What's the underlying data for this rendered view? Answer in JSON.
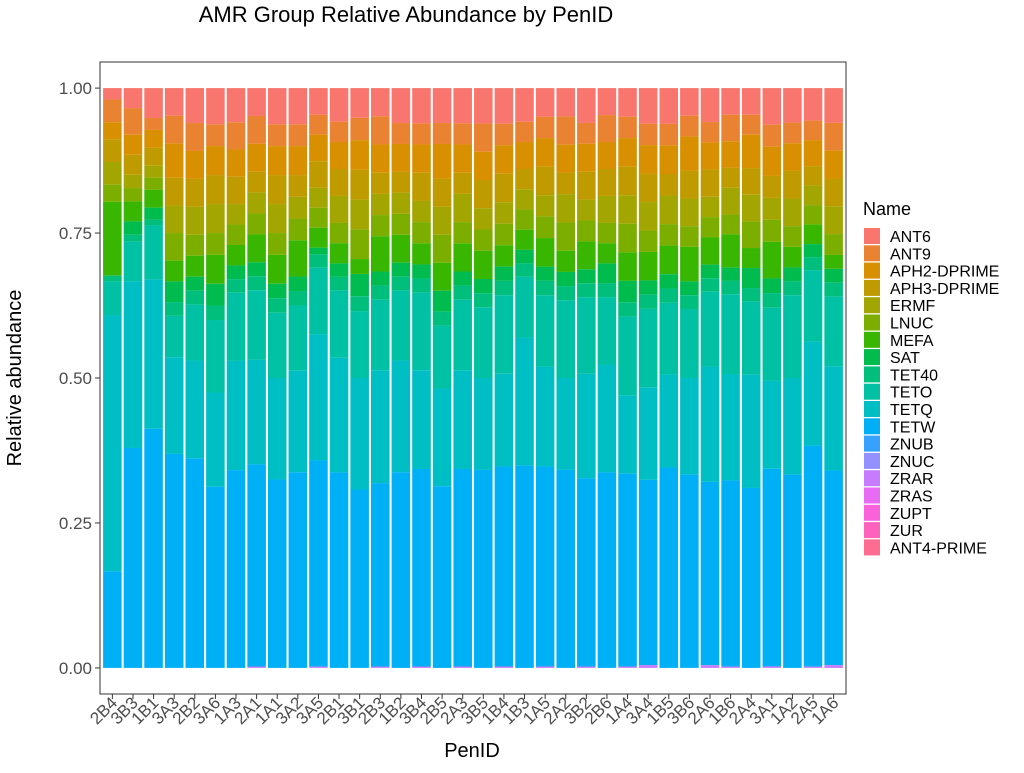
{
  "chart_data": {
    "type": "bar",
    "stacked": true,
    "title": "AMR Group Relative Abundance by PenID",
    "xlabel": "PenID",
    "ylabel": "Relative abundance",
    "ylim": [
      0,
      1
    ],
    "yticks": [
      0,
      0.25,
      0.5,
      0.75,
      1.0
    ],
    "ytick_labels": [
      "0.00",
      "0.25",
      "0.50",
      "0.75",
      "1.00"
    ],
    "legend_title": "Name",
    "legend_position": "right",
    "categories": [
      "2B4",
      "3B3",
      "1B1",
      "3A3",
      "2B2",
      "3A6",
      "1A3",
      "2A1",
      "1A1",
      "3A2",
      "3A5",
      "2B1",
      "3B1",
      "2B3",
      "1B2",
      "3B4",
      "2B5",
      "2A3",
      "3B5",
      "1B4",
      "1B3",
      "1A5",
      "2A2",
      "3B2",
      "2B6",
      "1A4",
      "3A4",
      "1B5",
      "3B6",
      "2A6",
      "1B6",
      "2A4",
      "3A1",
      "1A2",
      "2A5",
      "1A6"
    ],
    "series": [
      {
        "name": "ANT6",
        "color": "#F8766D",
        "values": [
          0.02,
          0.03,
          0.05,
          0.04,
          0.05,
          0.05,
          0.05,
          0.04,
          0.05,
          0.05,
          0.04,
          0.05,
          0.04,
          0.04,
          0.05,
          0.05,
          0.05,
          0.05,
          0.05,
          0.05,
          0.05,
          0.04,
          0.04,
          0.05,
          0.04,
          0.04,
          0.05,
          0.05,
          0.04,
          0.05,
          0.04,
          0.04,
          0.05,
          0.05,
          0.05,
          0.05
        ]
      },
      {
        "name": "ANT9",
        "color": "#EA8331",
        "values": [
          0.04,
          0.04,
          0.02,
          0.04,
          0.04,
          0.03,
          0.04,
          0.04,
          0.03,
          0.03,
          0.03,
          0.03,
          0.03,
          0.04,
          0.03,
          0.03,
          0.03,
          0.03,
          0.04,
          0.03,
          0.03,
          0.03,
          0.04,
          0.03,
          0.04,
          0.03,
          0.03,
          0.03,
          0.03,
          0.03,
          0.04,
          0.03,
          0.03,
          0.03,
          0.03,
          0.04
        ]
      },
      {
        "name": "APH2-DPRIME",
        "color": "#D89000",
        "values": [
          0.03,
          0.03,
          0.03,
          0.05,
          0.04,
          0.04,
          0.04,
          0.04,
          0.04,
          0.04,
          0.04,
          0.04,
          0.04,
          0.04,
          0.04,
          0.04,
          0.05,
          0.04,
          0.04,
          0.04,
          0.04,
          0.04,
          0.04,
          0.04,
          0.04,
          0.04,
          0.04,
          0.04,
          0.05,
          0.04,
          0.04,
          0.05,
          0.04,
          0.04,
          0.04,
          0.04
        ]
      },
      {
        "name": "APH3-DPRIME",
        "color": "#C09B00",
        "values": [
          0.04,
          0.03,
          0.03,
          0.04,
          0.04,
          0.04,
          0.04,
          0.03,
          0.04,
          0.03,
          0.04,
          0.04,
          0.04,
          0.03,
          0.03,
          0.04,
          0.04,
          0.03,
          0.04,
          0.04,
          0.03,
          0.04,
          0.03,
          0.04,
          0.04,
          0.04,
          0.04,
          0.03,
          0.04,
          0.04,
          0.03,
          0.04,
          0.03,
          0.04,
          0.03,
          0.04
        ]
      },
      {
        "name": "ERMF",
        "color": "#A3A500",
        "values": [
          0.04,
          0.02,
          0.02,
          0.04,
          0.04,
          0.04,
          0.03,
          0.03,
          0.04,
          0.03,
          0.03,
          0.04,
          0.04,
          0.03,
          0.03,
          0.03,
          0.04,
          0.04,
          0.03,
          0.03,
          0.03,
          0.03,
          0.04,
          0.03,
          0.04,
          0.04,
          0.04,
          0.04,
          0.04,
          0.03,
          0.04,
          0.04,
          0.03,
          0.04,
          0.03,
          0.04
        ]
      },
      {
        "name": "LNUC",
        "color": "#7CAE00",
        "values": [
          0.03,
          0.02,
          0.02,
          0.04,
          0.03,
          0.03,
          0.03,
          0.03,
          0.03,
          0.03,
          0.03,
          0.03,
          0.04,
          0.03,
          0.03,
          0.03,
          0.04,
          0.03,
          0.03,
          0.03,
          0.03,
          0.03,
          0.04,
          0.03,
          0.03,
          0.04,
          0.03,
          0.03,
          0.03,
          0.03,
          0.03,
          0.04,
          0.03,
          0.03,
          0.03,
          0.03
        ]
      },
      {
        "name": "MEFA",
        "color": "#39B600",
        "values": [
          0.13,
          0.03,
          0.03,
          0.03,
          0.03,
          0.04,
          0.03,
          0.04,
          0.04,
          0.05,
          0.03,
          0.03,
          0.02,
          0.05,
          0.04,
          0.03,
          0.04,
          0.04,
          0.04,
          0.03,
          0.03,
          0.04,
          0.03,
          0.04,
          0.03,
          0.04,
          0.04,
          0.04,
          0.05,
          0.04,
          0.05,
          0.03,
          0.05,
          0.03,
          0.03,
          0.02
        ]
      },
      {
        "name": "SAT",
        "color": "#00BB4E",
        "values": [
          0.0,
          0.02,
          0.02,
          0.03,
          0.02,
          0.03,
          0.02,
          0.02,
          0.02,
          0.02,
          0.01,
          0.02,
          0.03,
          0.02,
          0.02,
          0.02,
          0.03,
          0.02,
          0.02,
          0.02,
          0.02,
          0.02,
          0.02,
          0.02,
          0.03,
          0.03,
          0.02,
          0.02,
          0.02,
          0.02,
          0.02,
          0.03,
          0.02,
          0.02,
          0.02,
          0.02
        ]
      },
      {
        "name": "TET40",
        "color": "#00BF7D",
        "values": [
          0.01,
          0.01,
          0.01,
          0.02,
          0.02,
          0.02,
          0.02,
          0.02,
          0.02,
          0.02,
          0.02,
          0.02,
          0.02,
          0.02,
          0.02,
          0.02,
          0.02,
          0.02,
          0.02,
          0.02,
          0.02,
          0.02,
          0.02,
          0.02,
          0.02,
          0.02,
          0.02,
          0.02,
          0.02,
          0.02,
          0.02,
          0.02,
          0.02,
          0.02,
          0.02,
          0.02
        ]
      },
      {
        "name": "TETO",
        "color": "#00C1A3",
        "values": [
          0.06,
          0.06,
          0.09,
          0.06,
          0.08,
          0.1,
          0.1,
          0.1,
          0.09,
          0.09,
          0.1,
          0.1,
          0.09,
          0.1,
          0.1,
          0.11,
          0.09,
          0.1,
          0.1,
          0.11,
          0.09,
          0.1,
          0.11,
          0.11,
          0.1,
          0.11,
          0.11,
          0.1,
          0.1,
          0.11,
          0.12,
          0.11,
          0.1,
          0.12,
          0.11,
          0.1
        ]
      },
      {
        "name": "TETQ",
        "color": "#00BFC4",
        "values": [
          0.45,
          0.25,
          0.25,
          0.14,
          0.14,
          0.13,
          0.16,
          0.15,
          0.14,
          0.14,
          0.19,
          0.17,
          0.15,
          0.16,
          0.16,
          0.14,
          0.14,
          0.14,
          0.13,
          0.13,
          0.19,
          0.14,
          0.13,
          0.15,
          0.16,
          0.11,
          0.13,
          0.13,
          0.14,
          0.17,
          0.16,
          0.17,
          0.12,
          0.14,
          0.16,
          0.15
        ]
      },
      {
        "name": "TETW",
        "color": "#00B0F6",
        "values": [
          0.17,
          0.33,
          0.4,
          0.31,
          0.3,
          0.25,
          0.29,
          0.29,
          0.26,
          0.27,
          0.31,
          0.29,
          0.24,
          0.26,
          0.28,
          0.28,
          0.26,
          0.28,
          0.28,
          0.28,
          0.3,
          0.28,
          0.28,
          0.27,
          0.29,
          0.27,
          0.26,
          0.28,
          0.28,
          0.27,
          0.28,
          0.27,
          0.27,
          0.28,
          0.34,
          0.28
        ]
      },
      {
        "name": "ZNUB",
        "color": "#35A2FF",
        "values": [
          0.0,
          0.0,
          0.0,
          0.0,
          0.0,
          0.0,
          0.0,
          0.0,
          0.0,
          0.0,
          0.0,
          0.0,
          0.0,
          0.0,
          0.0,
          0.0,
          0.0,
          0.0,
          0.0,
          0.0,
          0.0,
          0.0,
          0.0,
          0.0,
          0.0,
          0.0,
          0.0,
          0.0,
          0.0,
          0.0,
          0.0,
          0.0,
          0.0,
          0.0,
          0.0,
          0.0
        ]
      },
      {
        "name": "ZNUC",
        "color": "#9590FF",
        "values": [
          0.0,
          0.0,
          0.0,
          0.0,
          0.0,
          0.0,
          0.0,
          0.0,
          0.0,
          0.0,
          0.0,
          0.0,
          0.0,
          0.0,
          0.0,
          0.0,
          0.0,
          0.0,
          0.0,
          0.0,
          0.0,
          0.0,
          0.0,
          0.0,
          0.0,
          0.0,
          0.0,
          0.0,
          0.0,
          0.0,
          0.0,
          0.0,
          0.0,
          0.0,
          0.0,
          0.0
        ]
      },
      {
        "name": "ZRAR",
        "color": "#C77CFF",
        "values": [
          0.0,
          0.0,
          0.0,
          0.0,
          0.0,
          0.0,
          0.0,
          0.002,
          0.0,
          0.0,
          0.002,
          0.0,
          0.0,
          0.002,
          0.0,
          0.002,
          0.0,
          0.002,
          0.0,
          0.002,
          0.0,
          0.002,
          0.0,
          0.002,
          0.0,
          0.002,
          0.004,
          0.0,
          0.0,
          0.004,
          0.002,
          0.0,
          0.002,
          0.0,
          0.002,
          0.004
        ]
      },
      {
        "name": "ZRAS",
        "color": "#E76BF3",
        "values": [
          0.0,
          0.0,
          0.0,
          0.0,
          0.0,
          0.0,
          0.0,
          0.0,
          0.0,
          0.0,
          0.0,
          0.0,
          0.0,
          0.0,
          0.0,
          0.0,
          0.0,
          0.0,
          0.0,
          0.0,
          0.0,
          0.0,
          0.0,
          0.0,
          0.0,
          0.0,
          0.0,
          0.0,
          0.0,
          0.0,
          0.0,
          0.0,
          0.0,
          0.0,
          0.0,
          0.0
        ]
      },
      {
        "name": "ZUPT",
        "color": "#FA62DB",
        "values": [
          0.0,
          0.0,
          0.0,
          0.0,
          0.0,
          0.0,
          0.0,
          0.0,
          0.0,
          0.0,
          0.0,
          0.0,
          0.0,
          0.0,
          0.0,
          0.0,
          0.0,
          0.0,
          0.0,
          0.0,
          0.0,
          0.0,
          0.0,
          0.0,
          0.0,
          0.0,
          0.0,
          0.0,
          0.0,
          0.0,
          0.0,
          0.0,
          0.0,
          0.0,
          0.0,
          0.0
        ]
      },
      {
        "name": "ZUR",
        "color": "#FF62BC",
        "values": [
          0.0,
          0.0,
          0.0,
          0.0,
          0.0,
          0.0,
          0.0,
          0.0,
          0.0,
          0.0,
          0.0,
          0.0,
          0.0,
          0.0,
          0.0,
          0.0,
          0.0,
          0.0,
          0.0,
          0.0,
          0.0,
          0.0,
          0.0,
          0.0,
          0.0,
          0.0,
          0.0,
          0.0,
          0.0,
          0.0,
          0.0,
          0.0,
          0.0,
          0.0,
          0.0,
          0.0
        ]
      },
      {
        "name": "ANT4-PRIME",
        "color": "#FF6C91",
        "values": [
          0.0,
          0.0,
          0.0,
          0.0,
          0.0,
          0.0,
          0.0,
          0.0,
          0.0,
          0.0,
          0.0,
          0.0,
          0.0,
          0.0,
          0.0,
          0.0,
          0.0,
          0.0,
          0.0,
          0.0,
          0.0,
          0.0,
          0.0,
          0.0,
          0.0,
          0.0,
          0.0,
          0.0,
          0.0,
          0.0,
          0.0,
          0.0,
          0.0,
          0.0,
          0.0,
          0.0
        ]
      }
    ]
  }
}
